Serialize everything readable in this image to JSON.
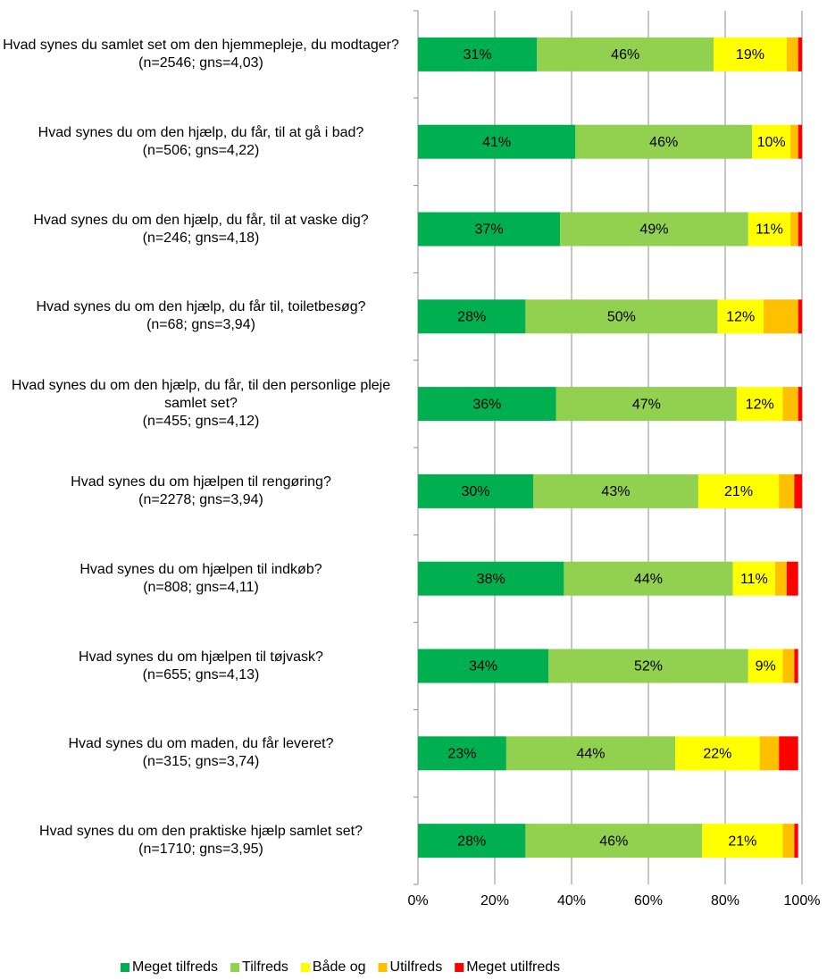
{
  "chart_data": {
    "type": "stacked_barh",
    "categories": [
      "Hvad synes du samlet set om den hjemmepleje, du modtager?\n(n=2546; gns=4,03)",
      "Hvad synes du om den hjælp, du får, til at gå i bad?\n(n=506; gns=4,22)",
      "Hvad synes du om den hjælp, du får, til at vaske dig?\n(n=246; gns=4,18)",
      "Hvad synes du om den hjælp, du får til, toiletbesøg?\n(n=68; gns=3,94)",
      "Hvad synes du om den hjælp, du får, til den personlige pleje samlet set?\n(n=455; gns=4,12)",
      "Hvad synes du om hjælpen til rengøring?\n(n=2278; gns=3,94)",
      "Hvad synes du om hjælpen til indkøb?\n(n=808; gns=4,11)",
      "Hvad synes du om hjælpen til tøjvask?\n(n=655; gns=4,13)",
      "Hvad synes du om maden, du får leveret?\n(n=315; gns=3,74)",
      "Hvad synes du om den praktiske hjælp samlet set?\n(n=1710; gns=3,95)"
    ],
    "series": [
      {
        "name": "Meget tilfreds",
        "color": "#00b050",
        "values": [
          31,
          41,
          37,
          28,
          36,
          30,
          38,
          34,
          23,
          28
        ],
        "value_labels": [
          "31%",
          "41%",
          "37%",
          "28%",
          "36%",
          "30%",
          "38%",
          "34%",
          "23%",
          "28%"
        ]
      },
      {
        "name": "Tilfreds",
        "color": "#92d050",
        "values": [
          46,
          46,
          49,
          50,
          47,
          43,
          44,
          52,
          44,
          46
        ],
        "value_labels": [
          "46%",
          "46%",
          "49%",
          "50%",
          "47%",
          "43%",
          "44%",
          "52%",
          "44%",
          "46%"
        ]
      },
      {
        "name": "Både og",
        "color": "#ffff00",
        "values": [
          19,
          10,
          11,
          12,
          12,
          21,
          11,
          9,
          22,
          21
        ],
        "value_labels": [
          "19%",
          "10%",
          "11%",
          "12%",
          "12%",
          "21%",
          "11%",
          "9%",
          "22%",
          "21%"
        ]
      },
      {
        "name": "Utilfreds",
        "color": "#ffc000",
        "values": [
          3,
          2,
          2,
          9,
          4,
          4,
          3,
          3,
          5,
          3
        ]
      },
      {
        "name": "Meget utilfreds",
        "color": "#ff0000",
        "values": [
          1,
          1,
          1,
          1,
          1,
          2,
          3,
          1,
          5,
          1
        ]
      }
    ],
    "xlim": [
      0,
      100
    ],
    "xticks": [
      {
        "value": 0,
        "label": "0%"
      },
      {
        "value": 20,
        "label": "20%"
      },
      {
        "value": 40,
        "label": "40%"
      },
      {
        "value": 60,
        "label": "60%"
      },
      {
        "value": 80,
        "label": "80%"
      },
      {
        "value": 100,
        "label": "100%"
      }
    ],
    "grid": true,
    "legend": "bottom"
  }
}
